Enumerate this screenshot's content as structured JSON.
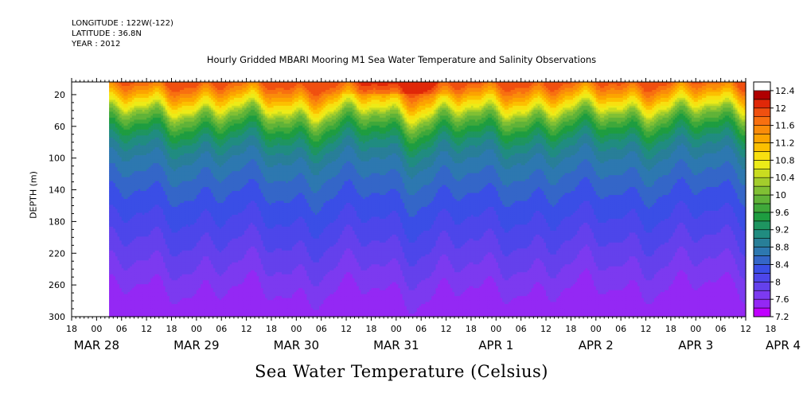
{
  "header": {
    "longitude": "LONGITUDE : 122W(-122)",
    "latitude": "LATITUDE : 36.8N",
    "year": "YEAR : 2012"
  },
  "chart_data": {
    "type": "heatmap",
    "title": "Hourly Gridded MBARI Mooring M1 Sea Water Temperature and Salinity Observations",
    "bottom_label": "Sea Water Temperature (Celsius)",
    "ylabel": "DEPTH (m)",
    "xlabel": "",
    "y_ticks": [
      20,
      60,
      100,
      140,
      180,
      220,
      260,
      300
    ],
    "ylim": [
      300,
      4
    ],
    "x_range_hours": [
      0,
      162
    ],
    "data_start_hour": 9,
    "x_hour_ticks": [
      "18",
      "00",
      "06",
      "12",
      "18",
      "00",
      "06",
      "12",
      "18",
      "00",
      "06",
      "12",
      "18",
      "00",
      "06",
      "12",
      "18",
      "00",
      "06",
      "12",
      "18",
      "00",
      "06",
      "12",
      "18",
      "00",
      "06",
      "12",
      "18"
    ],
    "date_labels": [
      "MAR 28",
      "MAR 29",
      "MAR 30",
      "MAR 31",
      "APR  1",
      "APR  2",
      "APR  3",
      "APR  4"
    ],
    "date_label_hours": [
      6,
      30,
      54,
      78,
      102,
      126,
      150,
      171
    ],
    "colorbar_labels": [
      "12.4",
      "12",
      "11.6",
      "11.2",
      "10.8",
      "10.4",
      "10",
      "9.6",
      "9.2",
      "8.8",
      "8.4",
      "8",
      "7.6",
      "7.2"
    ],
    "color_levels": {
      "min": 7.2,
      "max": 12.6,
      "step": 0.2,
      "colors": [
        "#c000ff",
        "#9428f4",
        "#7c3af0",
        "#6441ec",
        "#4d46ea",
        "#3a4ee6",
        "#3466c8",
        "#2d78b0",
        "#287f98",
        "#208c80",
        "#1e9560",
        "#1e9d40",
        "#3fa83a",
        "#60b338",
        "#80c034",
        "#a3cd2c",
        "#c9dc20",
        "#eceb18",
        "#f8e010",
        "#fcc000",
        "#fca400",
        "#fa8c0a",
        "#f87010",
        "#f05010",
        "#e02808",
        "#b00000"
      ]
    },
    "depth_profile": {
      "depth_m": [
        4,
        15,
        25,
        35,
        45,
        60,
        80,
        100,
        130,
        160,
        190,
        220,
        250,
        280,
        300
      ],
      "temperature_c": [
        11.9,
        11.5,
        11.1,
        10.7,
        10.1,
        9.6,
        9.1,
        8.8,
        8.5,
        8.3,
        8.1,
        7.9,
        7.7,
        7.5,
        7.4
      ]
    }
  }
}
